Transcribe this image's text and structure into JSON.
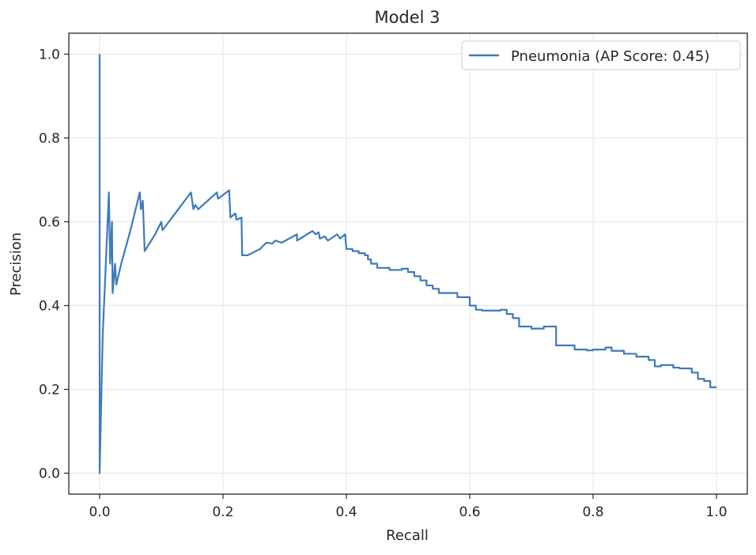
{
  "chart_data": {
    "type": "line",
    "title": "Model 3",
    "xlabel": "Recall",
    "ylabel": "Precision",
    "xlim": [
      -0.05,
      1.05
    ],
    "ylim": [
      -0.05,
      1.05
    ],
    "xticks": [
      0.0,
      0.2,
      0.4,
      0.6,
      0.8,
      1.0
    ],
    "yticks": [
      0.0,
      0.2,
      0.4,
      0.6,
      0.8,
      1.0
    ],
    "xtick_labels": [
      "0.0",
      "0.2",
      "0.4",
      "0.6",
      "0.8",
      "1.0"
    ],
    "ytick_labels": [
      "0.0",
      "0.2",
      "0.4",
      "0.6",
      "0.8",
      "1.0"
    ],
    "grid": true,
    "legend_position": "top-right",
    "series": [
      {
        "name": "Pneumonia (AP Score: 0.45)",
        "color": "#3d7ab8",
        "points": [
          [
            0.0,
            1.0
          ],
          [
            0.0,
            0.0
          ],
          [
            0.005,
            0.33
          ],
          [
            0.01,
            0.5
          ],
          [
            0.015,
            0.67
          ],
          [
            0.017,
            0.5
          ],
          [
            0.02,
            0.6
          ],
          [
            0.021,
            0.43
          ],
          [
            0.025,
            0.5
          ],
          [
            0.027,
            0.45
          ],
          [
            0.035,
            0.5
          ],
          [
            0.05,
            0.58
          ],
          [
            0.065,
            0.67
          ],
          [
            0.067,
            0.63
          ],
          [
            0.07,
            0.65
          ],
          [
            0.073,
            0.53
          ],
          [
            0.09,
            0.57
          ],
          [
            0.1,
            0.6
          ],
          [
            0.102,
            0.58
          ],
          [
            0.148,
            0.67
          ],
          [
            0.152,
            0.63
          ],
          [
            0.155,
            0.64
          ],
          [
            0.16,
            0.63
          ],
          [
            0.19,
            0.67
          ],
          [
            0.192,
            0.655
          ],
          [
            0.21,
            0.675
          ],
          [
            0.212,
            0.61
          ],
          [
            0.22,
            0.62
          ],
          [
            0.222,
            0.605
          ],
          [
            0.23,
            0.61
          ],
          [
            0.231,
            0.52
          ],
          [
            0.24,
            0.52
          ],
          [
            0.26,
            0.535
          ],
          [
            0.27,
            0.55
          ],
          [
            0.28,
            0.548
          ],
          [
            0.285,
            0.555
          ],
          [
            0.295,
            0.55
          ],
          [
            0.32,
            0.57
          ],
          [
            0.32,
            0.555
          ],
          [
            0.345,
            0.578
          ],
          [
            0.35,
            0.57
          ],
          [
            0.355,
            0.575
          ],
          [
            0.357,
            0.56
          ],
          [
            0.365,
            0.565
          ],
          [
            0.37,
            0.555
          ],
          [
            0.385,
            0.57
          ],
          [
            0.39,
            0.56
          ],
          [
            0.398,
            0.57
          ],
          [
            0.4,
            0.535
          ],
          [
            0.41,
            0.535
          ],
          [
            0.41,
            0.53
          ],
          [
            0.42,
            0.53
          ],
          [
            0.42,
            0.525
          ],
          [
            0.43,
            0.525
          ],
          [
            0.43,
            0.52
          ],
          [
            0.435,
            0.52
          ],
          [
            0.435,
            0.51
          ],
          [
            0.44,
            0.51
          ],
          [
            0.44,
            0.5
          ],
          [
            0.45,
            0.5
          ],
          [
            0.45,
            0.49
          ],
          [
            0.47,
            0.49
          ],
          [
            0.47,
            0.485
          ],
          [
            0.49,
            0.485
          ],
          [
            0.49,
            0.488
          ],
          [
            0.5,
            0.488
          ],
          [
            0.5,
            0.48
          ],
          [
            0.51,
            0.48
          ],
          [
            0.51,
            0.47
          ],
          [
            0.52,
            0.47
          ],
          [
            0.52,
            0.46
          ],
          [
            0.53,
            0.46
          ],
          [
            0.53,
            0.448
          ],
          [
            0.54,
            0.448
          ],
          [
            0.54,
            0.44
          ],
          [
            0.55,
            0.44
          ],
          [
            0.55,
            0.43
          ],
          [
            0.58,
            0.43
          ],
          [
            0.58,
            0.42
          ],
          [
            0.6,
            0.42
          ],
          [
            0.6,
            0.4
          ],
          [
            0.61,
            0.4
          ],
          [
            0.61,
            0.39
          ],
          [
            0.62,
            0.39
          ],
          [
            0.62,
            0.388
          ],
          [
            0.65,
            0.388
          ],
          [
            0.65,
            0.39
          ],
          [
            0.66,
            0.39
          ],
          [
            0.66,
            0.38
          ],
          [
            0.67,
            0.38
          ],
          [
            0.67,
            0.37
          ],
          [
            0.68,
            0.37
          ],
          [
            0.68,
            0.35
          ],
          [
            0.7,
            0.35
          ],
          [
            0.7,
            0.345
          ],
          [
            0.72,
            0.345
          ],
          [
            0.72,
            0.35
          ],
          [
            0.74,
            0.35
          ],
          [
            0.74,
            0.305
          ],
          [
            0.77,
            0.305
          ],
          [
            0.77,
            0.295
          ],
          [
            0.79,
            0.295
          ],
          [
            0.79,
            0.293
          ],
          [
            0.8,
            0.293
          ],
          [
            0.8,
            0.295
          ],
          [
            0.82,
            0.295
          ],
          [
            0.82,
            0.3
          ],
          [
            0.83,
            0.3
          ],
          [
            0.83,
            0.292
          ],
          [
            0.85,
            0.292
          ],
          [
            0.85,
            0.285
          ],
          [
            0.87,
            0.285
          ],
          [
            0.87,
            0.278
          ],
          [
            0.89,
            0.278
          ],
          [
            0.89,
            0.27
          ],
          [
            0.9,
            0.27
          ],
          [
            0.9,
            0.255
          ],
          [
            0.91,
            0.255
          ],
          [
            0.91,
            0.258
          ],
          [
            0.93,
            0.258
          ],
          [
            0.93,
            0.252
          ],
          [
            0.94,
            0.252
          ],
          [
            0.94,
            0.25
          ],
          [
            0.96,
            0.25
          ],
          [
            0.96,
            0.24
          ],
          [
            0.97,
            0.24
          ],
          [
            0.97,
            0.225
          ],
          [
            0.98,
            0.225
          ],
          [
            0.98,
            0.22
          ],
          [
            0.99,
            0.22
          ],
          [
            0.99,
            0.205
          ],
          [
            1.0,
            0.205
          ]
        ]
      }
    ]
  }
}
